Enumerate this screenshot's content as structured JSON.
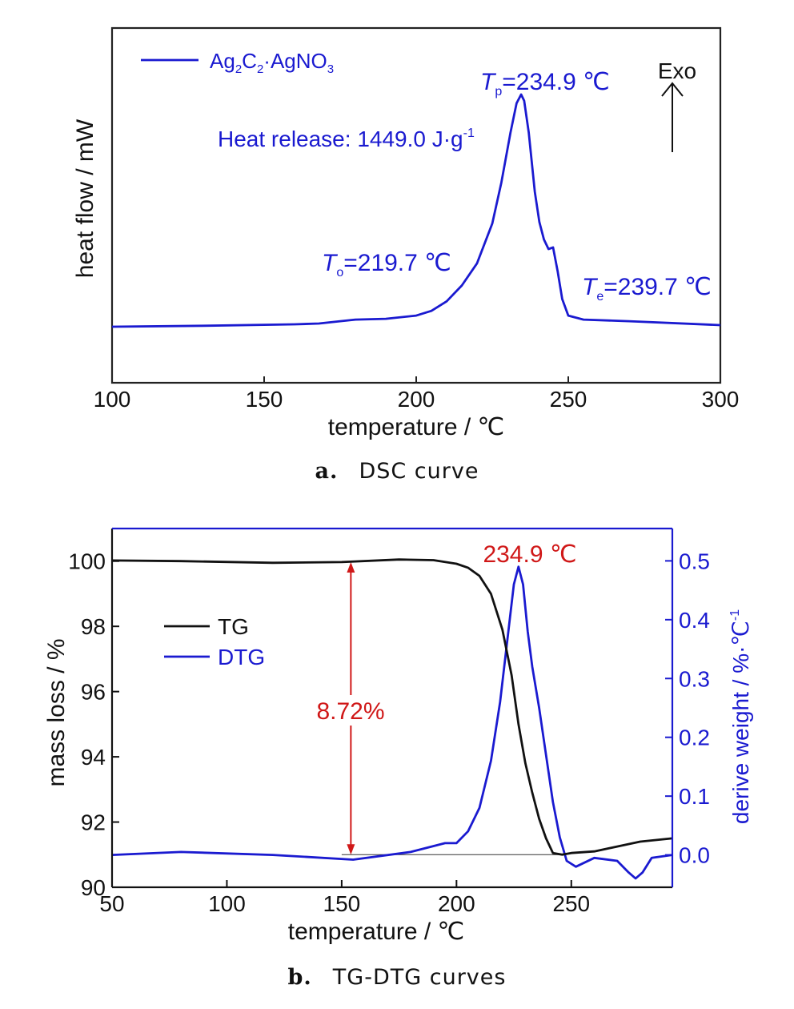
{
  "chart_data": [
    {
      "type": "line",
      "caption_letter": "a.",
      "caption_text": "DSC curve",
      "xlabel": "temperature / ℃",
      "ylabel": "heat flow / mW",
      "xlim": [
        100,
        300
      ],
      "xticks": [
        100,
        150,
        200,
        250,
        300
      ],
      "y_tick_labels_shown": false,
      "legend_position": "top-left",
      "series": [
        {
          "name": "Ag2C2·AgNO3",
          "name_parts": {
            "base": "Ag",
            "sub1": "2",
            "mid": "C",
            "sub2": "2",
            "tail": "·AgNO",
            "sub3": "3"
          },
          "color": "#1a1ad0",
          "points": [
            [
              100,
              0.0
            ],
            [
              130,
              0.012
            ],
            [
              160,
              0.03
            ],
            [
              168,
              0.04
            ],
            [
              175,
              0.07
            ],
            [
              180,
              0.09
            ],
            [
              190,
              0.1
            ],
            [
              200,
              0.14
            ],
            [
              205,
              0.2
            ],
            [
              210,
              0.32
            ],
            [
              215,
              0.52
            ],
            [
              220,
              0.8
            ],
            [
              225,
              1.3
            ],
            [
              228,
              1.82
            ],
            [
              231,
              2.45
            ],
            [
              233,
              2.82
            ],
            [
              234.5,
              2.93
            ],
            [
              235.5,
              2.85
            ],
            [
              237,
              2.45
            ],
            [
              239,
              1.7
            ],
            [
              240.5,
              1.32
            ],
            [
              242,
              1.1
            ],
            [
              243.5,
              0.98
            ],
            [
              245,
              1.0
            ],
            [
              246.5,
              0.7
            ],
            [
              248,
              0.35
            ],
            [
              250,
              0.14
            ],
            [
              255,
              0.09
            ],
            [
              270,
              0.07
            ],
            [
              300,
              0.02
            ]
          ]
        }
      ],
      "annotations": {
        "tp": {
          "sym": "T",
          "sub": "p",
          "val": "=234.9 ℃"
        },
        "to": {
          "sym": "T",
          "sub": "o",
          "val": "=219.7 ℃"
        },
        "te": {
          "sym": "T",
          "sub": "e",
          "val": "=239.7 ℃"
        },
        "heat": {
          "text": "Heat release: 1449.0 J·g",
          "sup": "-1"
        },
        "exo": "Exo"
      }
    },
    {
      "type": "line",
      "caption_letter": "b.",
      "caption_text": "TG-DTG curves",
      "xlabel": "temperature / ℃",
      "ylabel_left": "mass loss / %",
      "ylabel_right": {
        "text": "derive weight  / %·℃",
        "sup": "-1"
      },
      "xlim": [
        50,
        294
      ],
      "ylim_left": [
        90,
        101
      ],
      "ylim_right": [
        -0.055,
        0.555
      ],
      "xticks": [
        50,
        100,
        150,
        200,
        250
      ],
      "yticks_left": [
        90,
        92,
        94,
        96,
        98,
        100
      ],
      "yticks_right": [
        "0.0",
        "0.1",
        "0.2",
        "0.3",
        "0.4",
        "0.5"
      ],
      "legend_position": "upper-left",
      "series": [
        {
          "name": "TG",
          "axis": "left",
          "color": "#111111",
          "points": [
            [
              50,
              100.02
            ],
            [
              80,
              100.0
            ],
            [
              120,
              99.95
            ],
            [
              150,
              99.97
            ],
            [
              175,
              100.05
            ],
            [
              190,
              100.03
            ],
            [
              200,
              99.92
            ],
            [
              205,
              99.8
            ],
            [
              210,
              99.55
            ],
            [
              215,
              99.0
            ],
            [
              220,
              97.9
            ],
            [
              224,
              96.5
            ],
            [
              227,
              95.0
            ],
            [
              230,
              93.8
            ],
            [
              233,
              92.9
            ],
            [
              236,
              92.1
            ],
            [
              239,
              91.5
            ],
            [
              242,
              91.05
            ],
            [
              246,
              91.0
            ],
            [
              250,
              91.05
            ],
            [
              260,
              91.1
            ],
            [
              270,
              91.25
            ],
            [
              280,
              91.4
            ],
            [
              294,
              91.5
            ]
          ]
        },
        {
          "name": "DTG",
          "axis": "right",
          "color": "#1a1ad0",
          "points": [
            [
              50,
              0.0
            ],
            [
              80,
              0.005
            ],
            [
              120,
              0.0
            ],
            [
              155,
              -0.008
            ],
            [
              180,
              0.005
            ],
            [
              195,
              0.02
            ],
            [
              200,
              0.02
            ],
            [
              205,
              0.04
            ],
            [
              210,
              0.08
            ],
            [
              215,
              0.16
            ],
            [
              219,
              0.26
            ],
            [
              222,
              0.36
            ],
            [
              225,
              0.46
            ],
            [
              227,
              0.49
            ],
            [
              229,
              0.46
            ],
            [
              231,
              0.38
            ],
            [
              233,
              0.32
            ],
            [
              236,
              0.25
            ],
            [
              239,
              0.17
            ],
            [
              242,
              0.09
            ],
            [
              245,
              0.03
            ],
            [
              248,
              -0.01
            ],
            [
              252,
              -0.02
            ],
            [
              260,
              -0.005
            ],
            [
              270,
              -0.01
            ],
            [
              275,
              -0.03
            ],
            [
              278,
              -0.04
            ],
            [
              281,
              -0.03
            ],
            [
              285,
              -0.005
            ],
            [
              294,
              0.0
            ]
          ]
        }
      ],
      "annotations": {
        "peak": "234.9 ℃",
        "mass_loss": "8.72%"
      }
    }
  ]
}
